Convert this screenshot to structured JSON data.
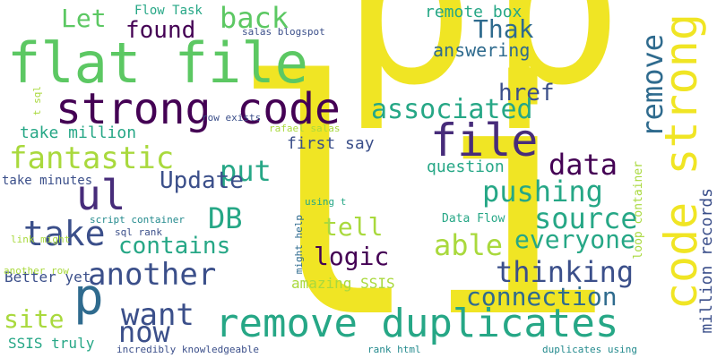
{
  "palette": {
    "background": "#ffffff",
    "yellow": "#f0e524",
    "light_green": "#a9d93d",
    "green": "#5cc863",
    "teal": "#26a786",
    "blue_teal": "#238a8d",
    "slate": "#2f6b8e",
    "indigo": "#3b4f8a",
    "purple": "#472c7a",
    "dark_purple": "#440154"
  },
  "words": [
    {
      "id": "p-big-1",
      "text": "p"
    },
    {
      "id": "p-big-2",
      "text": "p"
    },
    {
      "id": "li-big",
      "text": "li"
    },
    {
      "id": "flat-file",
      "text": "flat file"
    },
    {
      "id": "strong-code",
      "text": "strong code"
    },
    {
      "id": "remove-duplicates",
      "text": "remove duplicates"
    },
    {
      "id": "code-strong",
      "text": "code strong"
    },
    {
      "id": "file",
      "text": "file"
    },
    {
      "id": "ul",
      "text": "ul"
    },
    {
      "id": "p-small",
      "text": "p"
    },
    {
      "id": "remove",
      "text": "remove"
    },
    {
      "id": "let",
      "text": "Let"
    },
    {
      "id": "back",
      "text": "back"
    },
    {
      "id": "found",
      "text": "found"
    },
    {
      "id": "thak",
      "text": "Thak"
    },
    {
      "id": "answering",
      "text": "answering"
    },
    {
      "id": "remote-box",
      "text": "remote box"
    },
    {
      "id": "flow-task",
      "text": "Flow Task"
    },
    {
      "id": "salas-blogspot",
      "text": "salas blogspot"
    },
    {
      "id": "href",
      "text": "href"
    },
    {
      "id": "associated",
      "text": "associated"
    },
    {
      "id": "fantastic",
      "text": "fantastic"
    },
    {
      "id": "take-million",
      "text": "take million"
    },
    {
      "id": "first-say",
      "text": "first say"
    },
    {
      "id": "data",
      "text": "data"
    },
    {
      "id": "put",
      "text": "put"
    },
    {
      "id": "update",
      "text": "Update"
    },
    {
      "id": "question",
      "text": "question"
    },
    {
      "id": "pushing",
      "text": "pushing"
    },
    {
      "id": "take-minutes",
      "text": "take minutes"
    },
    {
      "id": "db",
      "text": "DB"
    },
    {
      "id": "take",
      "text": "take"
    },
    {
      "id": "tell",
      "text": "tell"
    },
    {
      "id": "source",
      "text": "source"
    },
    {
      "id": "contains",
      "text": "contains"
    },
    {
      "id": "able",
      "text": "able"
    },
    {
      "id": "everyone",
      "text": "everyone"
    },
    {
      "id": "logic",
      "text": "logic"
    },
    {
      "id": "another",
      "text": "another"
    },
    {
      "id": "thinking",
      "text": "thinking"
    },
    {
      "id": "connection",
      "text": "connection"
    },
    {
      "id": "want",
      "text": "want"
    },
    {
      "id": "now",
      "text": "now"
    },
    {
      "id": "site",
      "text": "site"
    },
    {
      "id": "amazing-ssis",
      "text": "amazing SSIS"
    },
    {
      "id": "better-yet",
      "text": "Better yet"
    },
    {
      "id": "ssis-truly",
      "text": "SSIS truly"
    },
    {
      "id": "incredibly-knowledgeable",
      "text": "incredibly knowledgeable"
    },
    {
      "id": "rank-html",
      "text": "rank html"
    },
    {
      "id": "duplicates-using",
      "text": "duplicates using"
    },
    {
      "id": "another-row",
      "text": "another row"
    },
    {
      "id": "script-container",
      "text": "script container"
    },
    {
      "id": "sql-rank",
      "text": "sql rank"
    },
    {
      "id": "data-flow",
      "text": "Data Flow"
    },
    {
      "id": "using-t",
      "text": "using t"
    },
    {
      "id": "link-might",
      "text": "link might"
    },
    {
      "id": "row-exists",
      "text": "row exists"
    },
    {
      "id": "rafael-salas",
      "text": "rafael salas"
    },
    {
      "id": "t-sql",
      "text": "t sql"
    },
    {
      "id": "loop-container",
      "text": "loop container"
    },
    {
      "id": "million-records",
      "text": "million records"
    },
    {
      "id": "might-help",
      "text": "might help"
    }
  ]
}
